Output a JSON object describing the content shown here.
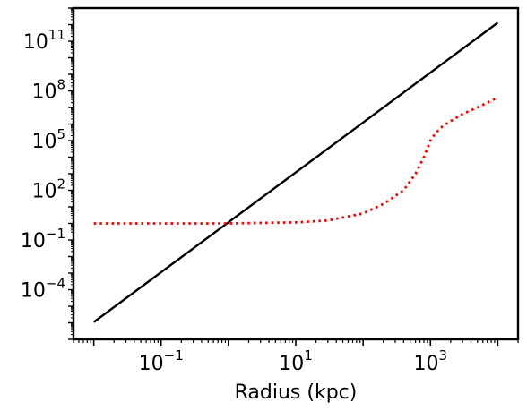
{
  "chart_data": {
    "type": "line",
    "title": "",
    "xlabel": "Radius (kpc)",
    "ylabel": "",
    "x_scale": "log",
    "y_scale": "log",
    "xlim": [
      0.005,
      20000
    ],
    "ylim": [
      1e-07,
      10000000000000.0
    ],
    "grid": false,
    "x_ticks": [
      {
        "base": "10",
        "exp": "−1",
        "value": 0.1
      },
      {
        "base": "10",
        "exp": "1",
        "value": 10
      },
      {
        "base": "10",
        "exp": "3",
        "value": 1000
      }
    ],
    "y_ticks": [
      {
        "base": "10",
        "exp": "11",
        "value": 100000000000.0
      },
      {
        "base": "10",
        "exp": "8",
        "value": 100000000.0
      },
      {
        "base": "10",
        "exp": "5",
        "value": 100000.0
      },
      {
        "base": "10",
        "exp": "2",
        "value": 100
      },
      {
        "base": "10",
        "exp": "−1",
        "value": 0.1
      },
      {
        "base": "10",
        "exp": "−4",
        "value": 0.0001
      }
    ],
    "series": [
      {
        "style": "solid",
        "color": "#000000",
        "x": [
          0.01,
          10000
        ],
        "y": [
          1.1e-06,
          1300000000000.0
        ]
      },
      {
        "style": "dotted",
        "color": "#ff0000",
        "x": [
          0.01,
          0.1,
          1,
          10,
          30,
          100,
          200,
          400,
          600,
          800,
          1000,
          1200,
          1500,
          2000,
          3000,
          5000,
          10000
        ],
        "y": [
          1.0,
          1.0,
          1.0,
          1.15,
          1.5,
          4,
          15,
          100,
          1000,
          10000,
          100000,
          300000,
          700000,
          1500000,
          4000000,
          10000000,
          40000000
        ]
      }
    ]
  }
}
